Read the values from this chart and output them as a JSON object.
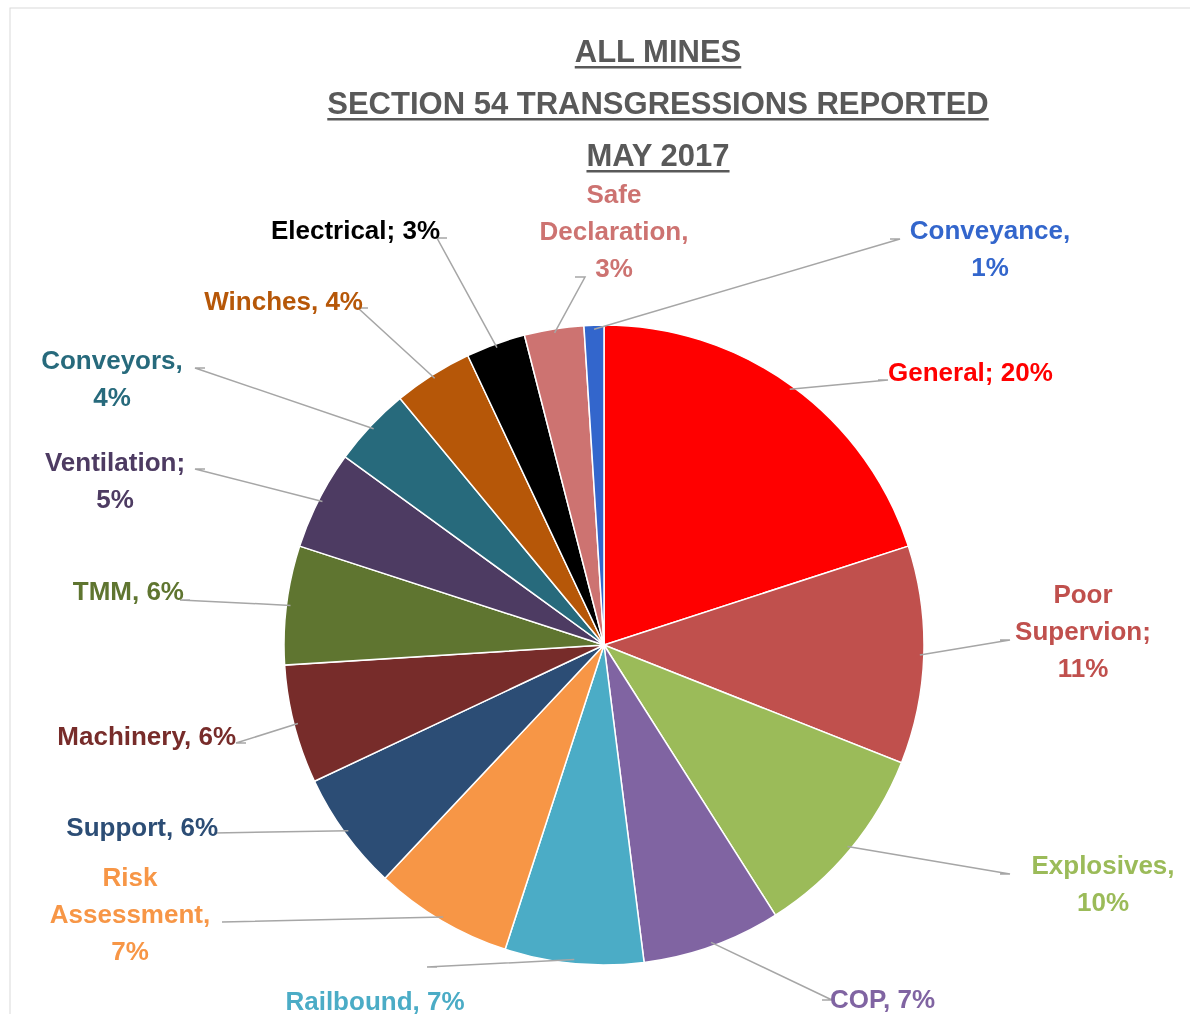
{
  "chart_data": {
    "type": "pie",
    "title": "ALL MINES\nSECTION 54 TRANSGRESSIONS REPORTED\nMAY 2017",
    "categories": [
      "General",
      "Poor Supervion",
      "Explosives",
      "COP",
      "Railbound",
      "Risk Assessment",
      "Support",
      "Machinery",
      "TMM",
      "Ventilation",
      "Conveyors",
      "Winches",
      "Electrical",
      "Safe Declaration",
      "Conveyance"
    ],
    "values": [
      20,
      11,
      10,
      7,
      7,
      7,
      6,
      6,
      6,
      5,
      4,
      4,
      3,
      3,
      1
    ],
    "value_labels": [
      "; 20%",
      "; 11%",
      ", 10%",
      ", 7%",
      ", 7%",
      ", 7%",
      ", 6%",
      ", 6%",
      ", 6%",
      "; 5%",
      ", 4%",
      ", 4%",
      "; 3%",
      ", 3%",
      ", 1%"
    ],
    "colors": [
      "#ff0000",
      "#c0504d",
      "#9bbb59",
      "#8064a2",
      "#4bacc6",
      "#f79646",
      "#2c4d75",
      "#772c2a",
      "#5f7530",
      "#4d3b62",
      "#276a7c",
      "#b65708",
      "#000000",
      "#cd7371",
      "#3366cc"
    ]
  }
}
